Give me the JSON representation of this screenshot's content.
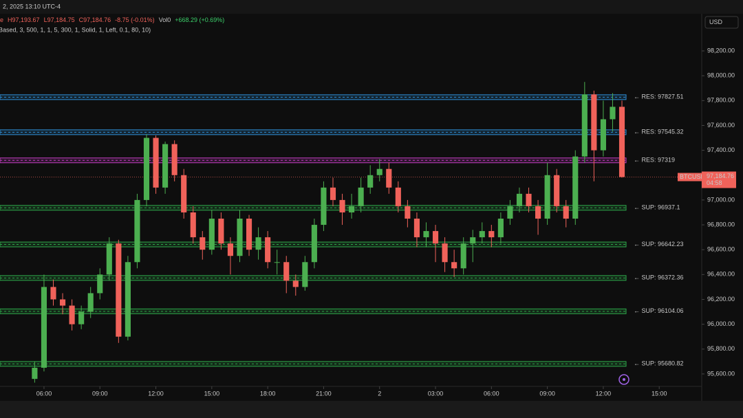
{
  "chart_data": {
    "type": "candlestick",
    "symbol": "BTCUSD",
    "date": "2, 2025 13:10 UTC-4",
    "ohlc_header": [
      "e",
      "H97,193.67",
      "L97,184.75",
      "C97,184.76",
      "-8.75 (-0.01%)",
      "Vol0",
      "+668.29 (+0.69%)"
    ],
    "indicator": "Based, 3, 500, 1, 1, 5, 300, 1, Solid, 1, Left, 0.1, 80, 10)",
    "currency": "USD",
    "last_price": {
      "value": 97184.76,
      "label": "97,184.76"
    },
    "countdown": "04:58",
    "up_color": "#4caf50",
    "down_color": "#f0625a",
    "xlim": [
      3.64,
      41.28
    ],
    "ylim": [
      95511,
      98499
    ],
    "xticks": [
      {
        "value": 6,
        "label": "06:00"
      },
      {
        "value": 9,
        "label": "09:00"
      },
      {
        "value": 12,
        "label": "12:00"
      },
      {
        "value": 15,
        "label": "15:00"
      },
      {
        "value": 18,
        "label": "18:00"
      },
      {
        "value": 21,
        "label": "21:00"
      },
      {
        "value": 24,
        "label": "2"
      },
      {
        "value": 27,
        "label": "03:00"
      },
      {
        "value": 30,
        "label": "06:00"
      },
      {
        "value": 33,
        "label": "09:00"
      },
      {
        "value": 36,
        "label": "12:00"
      },
      {
        "value": 39,
        "label": "15:00"
      }
    ],
    "yticks": [
      {
        "value": 95600,
        "label": "95,600.00"
      },
      {
        "value": 95800,
        "label": "95,800.00"
      },
      {
        "value": 96000,
        "label": "96,000.00"
      },
      {
        "value": 96200,
        "label": "96,200.00"
      },
      {
        "value": 96400,
        "label": "96,400.00"
      },
      {
        "value": 96600,
        "label": "96,600.00"
      },
      {
        "value": 96800,
        "label": "96,800.00"
      },
      {
        "value": 97000,
        "label": "97,000.00"
      },
      {
        "value": 97200,
        "label": "97,200.00"
      },
      {
        "value": 97400,
        "label": "97,400.00"
      },
      {
        "value": 97600,
        "label": "97,600.00"
      },
      {
        "value": 97800,
        "label": "97,800.00"
      },
      {
        "value": 98000,
        "label": "98,000.00"
      },
      {
        "value": 98200,
        "label": "98,200.00"
      }
    ],
    "levels": [
      {
        "label": "← RES: 97827.51",
        "value": 97827.51,
        "color": "#2f8fd8",
        "text_color": "#d946c8"
      },
      {
        "label": "← RES: 97545.32",
        "value": 97545.32,
        "color": "#2f8fd8",
        "text_color": "#d946c8"
      },
      {
        "label": "← RES: 97319",
        "value": 97319,
        "color": "#c23cc0",
        "text_color": "#d946c8"
      },
      {
        "label": "← SUP: 96937.1",
        "value": 96937.1,
        "color": "#2ea84a",
        "text_color": "#3ccf6a"
      },
      {
        "label": "← SUP: 96642.23",
        "value": 96642.23,
        "color": "#2ea84a",
        "text_color": "#3ccf6a"
      },
      {
        "label": "← SUP: 96372.36",
        "value": 96372.36,
        "color": "#2ea84a",
        "text_color": "#3ccf6a"
      },
      {
        "label": "← SUP: 96104.06",
        "value": 96104.06,
        "color": "#2ea84a",
        "text_color": "#3ccf6a"
      },
      {
        "label": "← SUP: 95680.82",
        "value": 95680.82,
        "color": "#2ea84a",
        "text_color": "#3ccf6a"
      }
    ],
    "x": [
      5.5,
      6,
      6.5,
      7,
      7.5,
      8,
      8.5,
      9,
      9.5,
      10,
      10.5,
      11,
      11.5,
      12,
      12.5,
      13,
      13.5,
      14,
      14.5,
      15,
      15.5,
      16,
      16.5,
      17,
      17.5,
      18,
      18.5,
      19,
      19.5,
      20,
      20.5,
      21,
      21.5,
      22,
      22.5,
      23,
      23.5,
      24,
      24.5,
      25,
      25.5,
      26,
      26.5,
      27,
      27.5,
      28,
      28.5,
      29,
      29.5,
      30,
      30.5,
      31,
      31.5,
      32,
      32.5,
      33,
      33.5,
      34,
      34.5,
      35,
      35.5,
      36,
      36.5,
      37
    ],
    "open": [
      95560,
      95650,
      96300,
      96200,
      96150,
      96000,
      96100,
      96250,
      96400,
      96650,
      95900,
      96500,
      97000,
      97500,
      97100,
      97450,
      97200,
      96900,
      96700,
      96600,
      96850,
      96650,
      96550,
      96850,
      96600,
      96700,
      96500,
      96500,
      96350,
      96300,
      96500,
      96800,
      97100,
      97000,
      96900,
      96950,
      97100,
      97200,
      97250,
      97100,
      96950,
      96850,
      96700,
      96750,
      96650,
      96500,
      96450,
      96650,
      96700,
      96750,
      96700,
      96850,
      96950,
      97050,
      96950,
      96850,
      97200,
      96950,
      96850,
      97350,
      97850,
      97400,
      97650,
      97750
    ],
    "high": [
      95700,
      96400,
      96360,
      96250,
      96200,
      96150,
      96300,
      96450,
      96700,
      96680,
      96550,
      97050,
      97530,
      97520,
      97470,
      97480,
      97250,
      96950,
      96750,
      96920,
      96900,
      96700,
      96920,
      96880,
      96780,
      96750,
      96600,
      96550,
      96400,
      96550,
      96850,
      97150,
      97180,
      97050,
      97050,
      97180,
      97280,
      97330,
      97300,
      97150,
      97000,
      96900,
      96820,
      96800,
      96700,
      96600,
      96700,
      96760,
      96820,
      96800,
      96900,
      97000,
      97100,
      97100,
      97000,
      97300,
      97250,
      97000,
      97400,
      97950,
      97880,
      97800,
      97860,
      97800
    ],
    "low": [
      95530,
      95620,
      96150,
      96080,
      95950,
      95960,
      96050,
      96200,
      96350,
      95850,
      95870,
      96450,
      96950,
      97050,
      97050,
      97150,
      96850,
      96650,
      96520,
      96560,
      96600,
      96400,
      96500,
      96550,
      96520,
      96450,
      96400,
      96250,
      96230,
      96270,
      96450,
      96750,
      96950,
      96800,
      96850,
      96900,
      97050,
      97150,
      97050,
      96900,
      96780,
      96620,
      96620,
      96500,
      96420,
      96380,
      96400,
      96500,
      96650,
      96620,
      96650,
      96800,
      96900,
      96900,
      96720,
      96800,
      96900,
      96780,
      96800,
      97300,
      97150,
      97350,
      97550,
      97180
    ],
    "close": [
      95650,
      96300,
      96200,
      96150,
      96000,
      96100,
      96250,
      96400,
      96650,
      95900,
      96500,
      97000,
      97500,
      97100,
      97450,
      97200,
      96900,
      96700,
      96600,
      96850,
      96650,
      96550,
      96850,
      96600,
      96700,
      96500,
      96500,
      96350,
      96300,
      96500,
      96800,
      97100,
      97000,
      96900,
      96950,
      97100,
      97200,
      97250,
      97100,
      96950,
      96850,
      96700,
      96750,
      96650,
      96500,
      96450,
      96650,
      96700,
      96750,
      96700,
      96850,
      96950,
      97050,
      96950,
      96850,
      97200,
      96950,
      96850,
      97350,
      97850,
      97400,
      97650,
      97750,
      97184.76
    ]
  }
}
